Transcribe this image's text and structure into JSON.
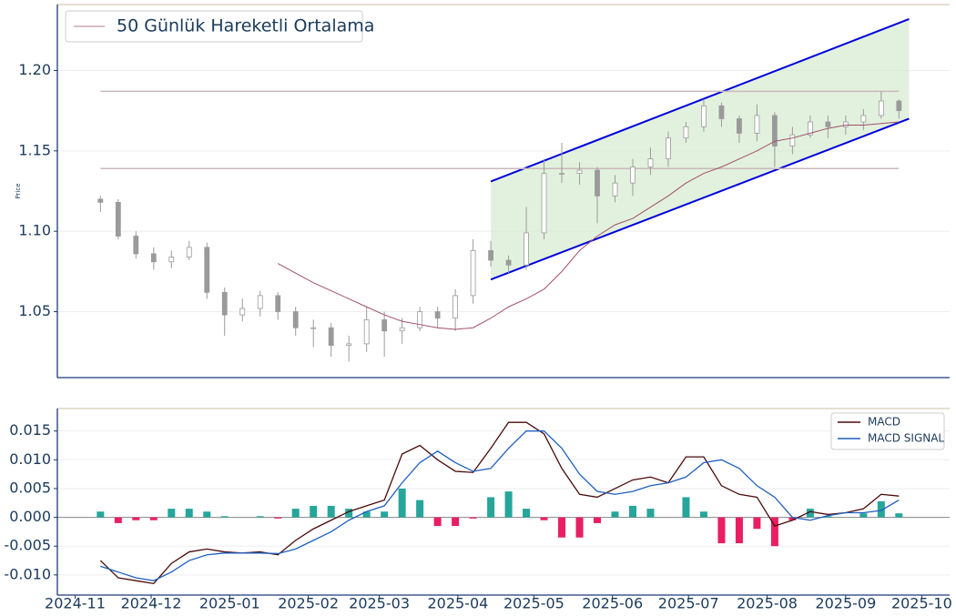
{
  "chart_data": [
    {
      "type": "candlestick",
      "y_label": "Price",
      "x": [
        "2024-11-11",
        "2024-11-18",
        "2024-11-25",
        "2024-12-02",
        "2024-12-09",
        "2024-12-16",
        "2024-12-23",
        "2024-12-30",
        "2025-01-06",
        "2025-01-13",
        "2025-01-20",
        "2025-01-27",
        "2025-02-03",
        "2025-02-10",
        "2025-02-17",
        "2025-02-24",
        "2025-03-03",
        "2025-03-10",
        "2025-03-17",
        "2025-03-24",
        "2025-03-31",
        "2025-04-07",
        "2025-04-14",
        "2025-04-21",
        "2025-04-28",
        "2025-05-05",
        "2025-05-12",
        "2025-05-19",
        "2025-05-26",
        "2025-06-02",
        "2025-06-09",
        "2025-06-16",
        "2025-06-23",
        "2025-06-30",
        "2025-07-07",
        "2025-07-14",
        "2025-07-21",
        "2025-07-28",
        "2025-08-04",
        "2025-08-11",
        "2025-08-18",
        "2025-08-25",
        "2025-09-01",
        "2025-09-08",
        "2025-09-15",
        "2025-09-22"
      ],
      "open": [
        1.12,
        1.118,
        1.097,
        1.086,
        1.081,
        1.084,
        1.09,
        1.062,
        1.048,
        1.052,
        1.06,
        1.05,
        1.04,
        1.04,
        1.029,
        1.03,
        1.045,
        1.038,
        1.04,
        1.05,
        1.046,
        1.06,
        1.088,
        1.082,
        1.079,
        1.099,
        1.136,
        1.136,
        1.138,
        1.122,
        1.13,
        1.14,
        1.145,
        1.158,
        1.165,
        1.178,
        1.17,
        1.161,
        1.172,
        1.153,
        1.16,
        1.168,
        1.165,
        1.168,
        1.172,
        1.181
      ],
      "high": [
        1.122,
        1.12,
        1.1,
        1.09,
        1.088,
        1.094,
        1.093,
        1.065,
        1.058,
        1.063,
        1.062,
        1.053,
        1.045,
        1.043,
        1.035,
        1.053,
        1.05,
        1.046,
        1.053,
        1.053,
        1.064,
        1.095,
        1.094,
        1.085,
        1.115,
        1.145,
        1.155,
        1.143,
        1.14,
        1.135,
        1.145,
        1.152,
        1.162,
        1.168,
        1.182,
        1.18,
        1.172,
        1.179,
        1.174,
        1.165,
        1.172,
        1.172,
        1.172,
        1.176,
        1.187,
        1.182
      ],
      "low": [
        1.112,
        1.095,
        1.083,
        1.076,
        1.077,
        1.082,
        1.058,
        1.035,
        1.044,
        1.047,
        1.045,
        1.035,
        1.028,
        1.022,
        1.019,
        1.025,
        1.022,
        1.03,
        1.038,
        1.04,
        1.038,
        1.055,
        1.078,
        1.074,
        1.076,
        1.095,
        1.13,
        1.129,
        1.105,
        1.118,
        1.122,
        1.135,
        1.14,
        1.155,
        1.162,
        1.165,
        1.155,
        1.156,
        1.14,
        1.148,
        1.158,
        1.158,
        1.16,
        1.163,
        1.17,
        1.17
      ],
      "close": [
        1.118,
        1.097,
        1.086,
        1.081,
        1.084,
        1.09,
        1.062,
        1.048,
        1.052,
        1.06,
        1.05,
        1.04,
        1.04,
        1.029,
        1.03,
        1.045,
        1.038,
        1.04,
        1.05,
        1.046,
        1.06,
        1.088,
        1.082,
        1.079,
        1.099,
        1.136,
        1.136,
        1.138,
        1.122,
        1.13,
        1.14,
        1.145,
        1.158,
        1.165,
        1.178,
        1.17,
        1.161,
        1.172,
        1.153,
        1.16,
        1.168,
        1.165,
        1.168,
        1.172,
        1.181,
        1.175
      ],
      "candle_color": "#9a9a9a",
      "series": [
        {
          "name": "50 Günlük Hareketli Ortalama",
          "color": "#a0506a",
          "values": [
            null,
            null,
            null,
            null,
            null,
            null,
            null,
            null,
            null,
            null,
            1.08,
            1.074,
            1.068,
            1.063,
            1.058,
            1.053,
            1.048,
            1.044,
            1.042,
            1.04,
            1.039,
            1.04,
            1.046,
            1.053,
            1.058,
            1.064,
            1.075,
            1.088,
            1.097,
            1.104,
            1.108,
            1.115,
            1.122,
            1.13,
            1.136,
            1.14,
            1.145,
            1.15,
            1.156,
            1.158,
            1.161,
            1.164,
            1.166,
            1.166,
            1.167,
            1.168
          ]
        }
      ],
      "hlines": {
        "values": [
          1.187,
          1.139
        ],
        "color": "#c9b9bd"
      },
      "channel": {
        "x": [
          "2025-04-14",
          "2025-09-26"
        ],
        "upper": [
          1.131,
          1.232
        ],
        "lower": [
          1.07,
          1.17
        ],
        "color": "#0000dd",
        "fill": "#d6ebcf"
      },
      "xlim": [
        "2024-10-25",
        "2025-10-12"
      ],
      "ylim": [
        1.009,
        1.241
      ],
      "yticks": [
        1.05,
        {
          "value": 1.1,
          "label": "1.10"
        },
        1.15,
        {
          "value": 1.2,
          "label": "1.20"
        }
      ],
      "grid": true,
      "legend": "upper left"
    },
    {
      "type": "macd",
      "x": [
        "2024-11-11",
        "2024-11-18",
        "2024-11-25",
        "2024-12-02",
        "2024-12-09",
        "2024-12-16",
        "2024-12-23",
        "2024-12-30",
        "2025-01-06",
        "2025-01-13",
        "2025-01-20",
        "2025-01-27",
        "2025-02-03",
        "2025-02-10",
        "2025-02-17",
        "2025-02-24",
        "2025-03-03",
        "2025-03-10",
        "2025-03-17",
        "2025-03-24",
        "2025-03-31",
        "2025-04-07",
        "2025-04-14",
        "2025-04-21",
        "2025-04-28",
        "2025-05-05",
        "2025-05-12",
        "2025-05-19",
        "2025-05-26",
        "2025-06-02",
        "2025-06-09",
        "2025-06-16",
        "2025-06-23",
        "2025-06-30",
        "2025-07-07",
        "2025-07-14",
        "2025-07-21",
        "2025-07-28",
        "2025-08-04",
        "2025-08-11",
        "2025-08-18",
        "2025-08-25",
        "2025-09-01",
        "2025-09-08",
        "2025-09-15",
        "2025-09-22"
      ],
      "series": [
        {
          "name": "MACD",
          "color": "#4a0a0a",
          "values": [
            -0.0075,
            -0.0105,
            -0.011,
            -0.0115,
            -0.008,
            -0.006,
            -0.0055,
            -0.006,
            -0.0062,
            -0.006,
            -0.0065,
            -0.004,
            -0.002,
            -0.0005,
            0.001,
            0.002,
            0.003,
            0.011,
            0.0125,
            0.01,
            0.008,
            0.0078,
            0.012,
            0.0165,
            0.0165,
            0.0145,
            0.0085,
            0.004,
            0.0035,
            0.005,
            0.0065,
            0.007,
            0.006,
            0.0105,
            0.0105,
            0.0055,
            0.004,
            0.0035,
            -0.0015,
            -0.0005,
            0.001,
            0.0005,
            0.0008,
            0.0015,
            0.004,
            0.0037
          ]
        },
        {
          "name": "MACD SIGNAL",
          "color": "#1f5fbf",
          "values": [
            -0.0085,
            -0.0095,
            -0.0105,
            -0.011,
            -0.0095,
            -0.0075,
            -0.0065,
            -0.0062,
            -0.0062,
            -0.0062,
            -0.0063,
            -0.0055,
            -0.004,
            -0.0025,
            -0.0005,
            0.001,
            0.002,
            0.006,
            0.0095,
            0.0115,
            0.0095,
            0.008,
            0.0085,
            0.012,
            0.015,
            0.015,
            0.012,
            0.0075,
            0.0045,
            0.004,
            0.0045,
            0.0055,
            0.006,
            0.007,
            0.0095,
            0.01,
            0.0085,
            0.0055,
            0.0035,
            0.0,
            -0.0005,
            0.0003,
            0.0008,
            0.0008,
            0.0012,
            0.003
          ]
        }
      ],
      "histogram": {
        "values": [
          0.001,
          -0.001,
          -0.0005,
          -0.0005,
          0.0015,
          0.0015,
          0.001,
          0.0002,
          0,
          0.0002,
          -0.0002,
          0.0015,
          0.002,
          0.002,
          0.0015,
          0.001,
          0.001,
          0.005,
          0.003,
          -0.0015,
          -0.0015,
          -0.0002,
          0.0035,
          0.0045,
          0.0015,
          -0.0005,
          -0.0035,
          -0.0035,
          -0.001,
          0.001,
          0.002,
          0.0015,
          0,
          0.0035,
          0.001,
          -0.0045,
          -0.0045,
          -0.002,
          -0.005,
          -0.0005,
          0.0015,
          0.0002,
          0,
          0.0007,
          0.0028,
          0.0007
        ],
        "positive_color": "#26a69a",
        "negative_color": "#e91e63"
      },
      "xlim": [
        "2024-10-25",
        "2025-10-12"
      ],
      "ylim": [
        -0.0135,
        0.0189
      ],
      "yticks": [
        0.015,
        {
          "value": 0.01,
          "label": "0.010"
        },
        0.005,
        {
          "value": 0,
          "label": "0.000"
        },
        -0.005,
        {
          "value": -0.01,
          "label": "-0.010"
        }
      ],
      "xticks": [
        {
          "value": "2024-11-01",
          "label": "2024-11"
        },
        {
          "value": "2024-12-01",
          "label": "2024-12"
        },
        {
          "value": "2025-01-01",
          "label": "2025-01"
        },
        {
          "value": "2025-02-01",
          "label": "2025-02"
        },
        {
          "value": "2025-03-01",
          "label": "2025-03"
        },
        {
          "value": "2025-04-01",
          "label": "2025-04"
        },
        {
          "value": "2025-05-01",
          "label": "2025-05"
        },
        {
          "value": "2025-06-01",
          "label": "2025-06"
        },
        {
          "value": "2025-07-01",
          "label": "2025-07"
        },
        {
          "value": "2025-08-01",
          "label": "2025-08"
        },
        {
          "value": "2025-09-01",
          "label": "2025-09"
        },
        {
          "value": "2025-10-01",
          "label": "2025-10"
        }
      ],
      "grid": true,
      "legend": "upper right"
    }
  ]
}
